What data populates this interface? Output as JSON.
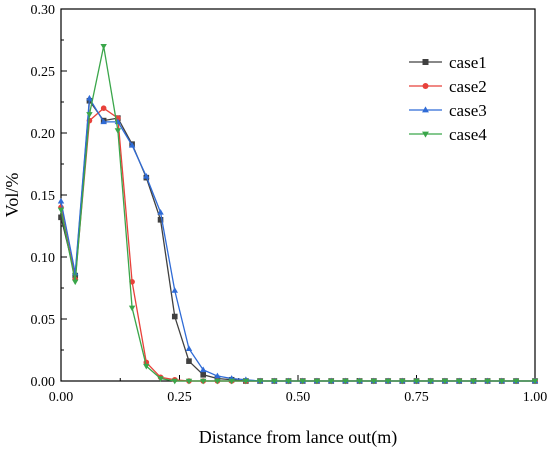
{
  "chart_data": {
    "type": "line",
    "xlabel": "Distance from lance out(m)",
    "ylabel": "Vol/%",
    "xlim": [
      0,
      1.0
    ],
    "ylim": [
      0,
      0.3
    ],
    "xticks": [
      "0.00",
      "0.25",
      "0.50",
      "0.75",
      "1.00"
    ],
    "yticks": [
      "0.00",
      "0.05",
      "0.10",
      "0.15",
      "0.20",
      "0.25",
      "0.30"
    ],
    "grid": false,
    "legend_position": "top-right",
    "x": [
      0.0,
      0.03,
      0.06,
      0.09,
      0.12,
      0.15,
      0.18,
      0.21,
      0.24,
      0.27,
      0.3,
      0.33,
      0.36,
      0.39,
      0.42,
      0.45,
      0.48,
      0.51,
      0.54,
      0.57,
      0.6,
      0.63,
      0.66,
      0.69,
      0.72,
      0.75,
      0.78,
      0.81,
      0.84,
      0.87,
      0.9,
      0.93,
      0.96,
      1.0
    ],
    "series": [
      {
        "name": "case1",
        "color": "#404040",
        "marker": "square",
        "values": [
          0.132,
          0.085,
          0.226,
          0.21,
          0.212,
          0.191,
          0.164,
          0.13,
          0.052,
          0.016,
          0.005,
          0.002,
          0.001,
          0,
          0,
          0,
          0,
          0,
          0,
          0,
          0,
          0,
          0,
          0,
          0,
          0,
          0,
          0,
          0,
          0,
          0,
          0,
          0,
          0
        ]
      },
      {
        "name": "case2",
        "color": "#e8413a",
        "marker": "circle",
        "values": [
          0.14,
          0.082,
          0.21,
          0.22,
          0.212,
          0.08,
          0.015,
          0.003,
          0.001,
          0,
          0,
          0,
          0,
          0,
          0,
          0,
          0,
          0,
          0,
          0,
          0,
          0,
          0,
          0,
          0,
          0,
          0,
          0,
          0,
          0,
          0,
          0,
          0,
          0
        ]
      },
      {
        "name": "case3",
        "color": "#2f6bd6",
        "marker": "triangle-up",
        "values": [
          0.145,
          0.087,
          0.228,
          0.209,
          0.209,
          0.19,
          0.165,
          0.136,
          0.073,
          0.026,
          0.009,
          0.004,
          0.002,
          0.001,
          0,
          0,
          0,
          0,
          0,
          0,
          0,
          0,
          0,
          0,
          0,
          0,
          0,
          0,
          0,
          0,
          0,
          0,
          0,
          0
        ]
      },
      {
        "name": "case4",
        "color": "#3aa64a",
        "marker": "triangle-down",
        "values": [
          0.138,
          0.08,
          0.215,
          0.27,
          0.202,
          0.059,
          0.012,
          0.002,
          0,
          0,
          0,
          0,
          0,
          0,
          0,
          0,
          0,
          0,
          0,
          0,
          0,
          0,
          0,
          0,
          0,
          0,
          0,
          0,
          0,
          0,
          0,
          0,
          0,
          0
        ]
      }
    ]
  }
}
